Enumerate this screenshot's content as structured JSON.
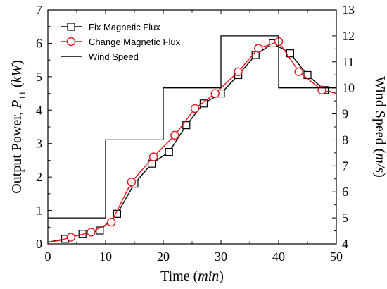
{
  "chart_data": {
    "type": "line",
    "x": {
      "label": "Time",
      "unit": "min",
      "range": [
        0,
        50
      ],
      "ticks": [
        "0",
        "10",
        "20",
        "30",
        "40",
        "50"
      ]
    },
    "y_left": {
      "label": "Output Power,",
      "symbol": "P",
      "subscript": "11",
      "unit": "kW",
      "range": [
        0,
        7
      ],
      "ticks": [
        "0",
        "1",
        "2",
        "3",
        "4",
        "5",
        "6",
        "7"
      ]
    },
    "y_right": {
      "label": "Wind Speed",
      "unit": "m/s",
      "range": [
        4,
        13
      ],
      "ticks": [
        "4",
        "5",
        "6",
        "7",
        "8",
        "9",
        "10",
        "11",
        "12",
        "13"
      ]
    },
    "legend": {
      "placement": "top-left",
      "entries": [
        "Fix Magnetic Flux",
        "Change Magnetic Flux",
        "Wind Speed"
      ]
    },
    "series": [
      {
        "name": "Fix Magnetic Flux",
        "axis": "left",
        "color": "#000000",
        "marker": "square",
        "points": [
          [
            0,
            0.05
          ],
          [
            3,
            0.15
          ],
          [
            6,
            0.3
          ],
          [
            9,
            0.4
          ],
          [
            12,
            0.9
          ],
          [
            15,
            1.8
          ],
          [
            18,
            2.4
          ],
          [
            21,
            2.75
          ],
          [
            24,
            3.55
          ],
          [
            27,
            4.2
          ],
          [
            30,
            4.5
          ],
          [
            33,
            5.05
          ],
          [
            36,
            5.65
          ],
          [
            39,
            6.0
          ],
          [
            42,
            5.7
          ],
          [
            45,
            5.05
          ],
          [
            48,
            4.6
          ],
          [
            50,
            4.5
          ]
        ],
        "marker_x": [
          3,
          6,
          9,
          12,
          15,
          18,
          21,
          24,
          27,
          30,
          33,
          36,
          39,
          42,
          45,
          48
        ]
      },
      {
        "name": "Change Magnetic Flux",
        "axis": "left",
        "color": "#e8171e",
        "marker": "circle",
        "points": [
          [
            0,
            0.05
          ],
          [
            2,
            0.1
          ],
          [
            4,
            0.2
          ],
          [
            7.5,
            0.35
          ],
          [
            11,
            0.65
          ],
          [
            14.5,
            1.85
          ],
          [
            18,
            2.55
          ],
          [
            22,
            3.25
          ],
          [
            25.5,
            4.05
          ],
          [
            29,
            4.5
          ],
          [
            33,
            5.15
          ],
          [
            36.5,
            5.85
          ],
          [
            40,
            6.05
          ],
          [
            43.5,
            5.15
          ],
          [
            47.5,
            4.6
          ],
          [
            50,
            4.5
          ]
        ],
        "marker_x": [
          4,
          7.5,
          11,
          14.5,
          18.3,
          22,
          25.5,
          29,
          33,
          36.5,
          40,
          43.5,
          47.5
        ]
      },
      {
        "name": "Wind Speed",
        "axis": "right",
        "color": "#000000",
        "marker": "none",
        "points": [
          [
            0,
            5
          ],
          [
            10,
            5
          ],
          [
            10,
            8
          ],
          [
            20,
            8
          ],
          [
            20,
            10
          ],
          [
            30,
            10
          ],
          [
            30,
            12
          ],
          [
            40,
            12
          ],
          [
            40,
            10
          ],
          [
            50,
            10
          ]
        ]
      }
    ],
    "grid": false
  }
}
